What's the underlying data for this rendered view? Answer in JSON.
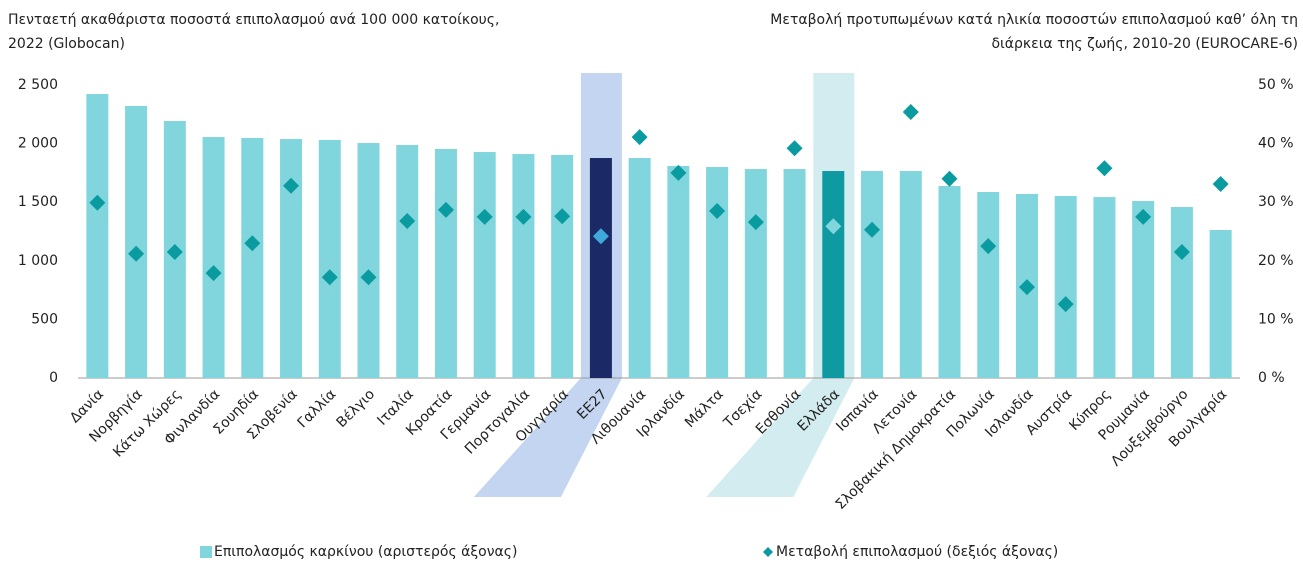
{
  "chart_data": {
    "type": "bar",
    "y_axis_title": [
      "Πενταετή ακαθάριστα ποσοστά επιπολασμού ανά 100 000 κατοίκους,",
      "2022 (Globocan)"
    ],
    "y2_axis_title": [
      "Μεταβολή προτυπωμένων κατά ηλικία ποσοστών επιπολασμού καθ’ όλη τη",
      "διάρκεια της ζωής, 2010-20 (EUROCARE-6)"
    ],
    "categories": [
      "Δανία",
      "Νορβηγία",
      "Κάτω Χώρες",
      "Φινλανδία",
      "Σουηδία",
      "Σλοβενία",
      "Γαλλία",
      "Βέλγιο",
      "Ιταλία",
      "Κροατία",
      "Γερμανία",
      "Πορτογαλία",
      "Ουγγαρία",
      "ΕΕ27",
      "Λιθουανία",
      "Ιρλανδία",
      "Μάλτα",
      "Τσεχία",
      "Εσθονία",
      "Ελλάδα",
      "Ισπανία",
      "Λετονία",
      "Σλοβακική Δημοκρατία",
      "Πολωνία",
      "Ισλανδία",
      "Αυστρία",
      "Κύπρος",
      "Ρουμανία",
      "Λουξεμβούργο",
      "Βουλγαρία"
    ],
    "series": [
      {
        "name": "Επιπολασμός καρκίνου (αριστερός άξονας)",
        "color": "#80d6dc",
        "type": "bar",
        "values": [
          2423,
          2321,
          2193,
          2056,
          2048,
          2039,
          2031,
          2005,
          1988,
          1954,
          1928,
          1911,
          1903,
          1877,
          1877,
          1809,
          1800,
          1783,
          1783,
          1766,
          1766,
          1766,
          1638,
          1587,
          1570,
          1553,
          1544,
          1510,
          1459,
          1263
        ]
      },
      {
        "name": "Μεταβολή επιπολασμού (δεξιός άξονας)",
        "color": "#0a9ba0",
        "type": "scatter",
        "axis": "y2",
        "values": [
          29.9,
          21.2,
          21.5,
          17.9,
          23.0,
          32.8,
          17.2,
          17.2,
          26.8,
          28.7,
          27.5,
          27.5,
          27.6,
          24.2,
          41.1,
          35.0,
          28.5,
          26.6,
          39.2,
          25.9,
          25.3,
          45.4,
          34.0,
          22.5,
          15.5,
          12.6,
          35.8,
          27.5,
          21.5,
          33.1
        ]
      }
    ],
    "highlight": [
      {
        "index": 13,
        "bar_color": "#1b2a66",
        "marker_color": "#3fa9d9",
        "band_color": "#c3d5f0"
      },
      {
        "index": 19,
        "bar_color": "#0e9aa0",
        "marker_color": "#80d6dc",
        "band_color": "#d2ecef"
      }
    ],
    "ylim": [
      0,
      2500
    ],
    "yticks": [
      0,
      500,
      {
        "value": 1000,
        "label": "1 000"
      },
      {
        "value": 1500,
        "label": "1 500"
      },
      {
        "value": 2000,
        "label": "2 000"
      },
      {
        "value": 2500,
        "label": "2 500"
      }
    ],
    "y2lim": [
      0,
      50
    ],
    "y2ticks": [
      {
        "value": 0,
        "label": "0 %"
      },
      {
        "value": 10,
        "label": "10 %"
      },
      {
        "value": 20,
        "label": "20 %"
      },
      {
        "value": 30,
        "label": "30 %"
      },
      {
        "value": 40,
        "label": "40 %"
      },
      {
        "value": 50,
        "label": "50 %"
      }
    ],
    "grid": false,
    "legend": "bottom"
  }
}
